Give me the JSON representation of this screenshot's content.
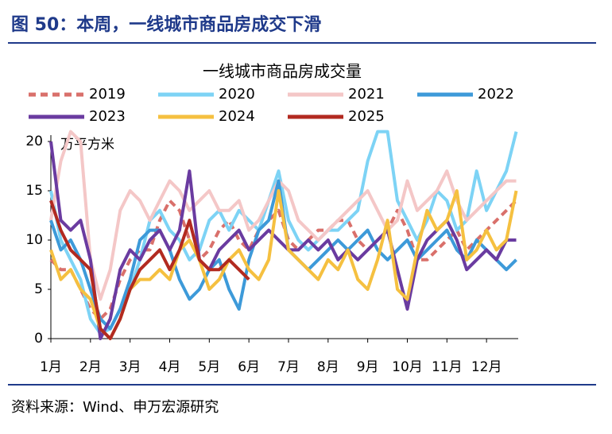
{
  "header": {
    "title": "图 50：本周，一线城市商品房成交下滑"
  },
  "chart_data": {
    "type": "line",
    "title": "一线城市商品房成交量",
    "y_label": "万平方米",
    "xlim": [
      1,
      12.8
    ],
    "ylim": [
      0,
      20
    ],
    "yticks": [
      0,
      5,
      10,
      15,
      20
    ],
    "xticks": [
      {
        "value": 1,
        "label": "1月"
      },
      {
        "value": 2,
        "label": "2月"
      },
      {
        "value": 3,
        "label": "3月"
      },
      {
        "value": 4,
        "label": "4月"
      },
      {
        "value": 5,
        "label": "5月"
      },
      {
        "value": 6,
        "label": "6月"
      },
      {
        "value": 7,
        "label": "7月"
      },
      {
        "value": 8,
        "label": "8月"
      },
      {
        "value": 9,
        "label": "9月"
      },
      {
        "value": 10,
        "label": "10月"
      },
      {
        "value": 11,
        "label": "11月"
      },
      {
        "value": 12,
        "label": "12月"
      }
    ],
    "x": [
      1,
      1.25,
      1.5,
      1.75,
      2,
      2.25,
      2.5,
      2.75,
      3,
      3.25,
      3.5,
      3.75,
      4,
      4.25,
      4.5,
      4.75,
      5,
      5.25,
      5.5,
      5.75,
      6,
      6.25,
      6.5,
      6.75,
      7,
      7.25,
      7.5,
      7.75,
      8,
      8.25,
      8.5,
      8.75,
      9,
      9.25,
      9.5,
      9.75,
      10,
      10.25,
      10.5,
      10.75,
      11,
      11.25,
      11.5,
      11.75,
      12,
      12.25,
      12.5,
      12.75
    ],
    "series": [
      {
        "name": "2019",
        "color": "#d9706b",
        "style": "dashed",
        "values": [
          8,
          7,
          7,
          5,
          3,
          2,
          3,
          6,
          8,
          9,
          9,
          12,
          14,
          13,
          10,
          8,
          9,
          11,
          12,
          10,
          9,
          11,
          12,
          13,
          10,
          9,
          10,
          11,
          11,
          12,
          12,
          10,
          9,
          10,
          11,
          13,
          11,
          8,
          8,
          9,
          10,
          11,
          9,
          10,
          11,
          12,
          13,
          14
        ]
      },
      {
        "name": "2020",
        "color": "#7dd3f5",
        "style": "solid",
        "values": [
          15,
          10,
          8,
          6,
          2,
          0.5,
          1,
          3,
          5,
          8,
          12,
          13,
          11,
          10,
          8,
          9,
          12,
          13,
          11,
          13,
          12,
          11,
          14,
          17,
          12,
          10,
          9,
          10,
          11,
          11,
          12,
          13,
          18,
          21,
          21,
          14,
          12,
          10,
          12,
          15,
          14,
          11,
          12,
          17,
          13,
          15,
          17,
          21
        ]
      },
      {
        "name": "2021",
        "color": "#f4c7c7",
        "style": "solid",
        "values": [
          12,
          18,
          21,
          20,
          8,
          4,
          7,
          13,
          15,
          14,
          12,
          14,
          16,
          15,
          13,
          14,
          15,
          13,
          13,
          14,
          11,
          12,
          14,
          16,
          15,
          12,
          11,
          10,
          11,
          12,
          13,
          14,
          15,
          13,
          11,
          12,
          16,
          13,
          14,
          15,
          17,
          14,
          12,
          13,
          14,
          15,
          16,
          16
        ]
      },
      {
        "name": "2022",
        "color": "#3d9ad9",
        "style": "solid",
        "values": [
          12,
          9,
          10,
          8,
          5,
          2,
          1,
          3,
          6,
          10,
          11,
          11,
          9,
          6,
          4,
          5,
          7,
          8,
          5,
          3,
          8,
          11,
          12,
          16,
          9,
          8,
          7,
          8,
          9,
          10,
          9,
          10,
          11,
          9,
          8,
          9,
          10,
          8,
          9,
          10,
          11,
          9,
          8,
          10,
          9,
          8,
          7,
          8
        ]
      },
      {
        "name": "2023",
        "color": "#6a3ba0",
        "style": "solid",
        "values": [
          20,
          12,
          11,
          12,
          8,
          0,
          2,
          7,
          9,
          8,
          10,
          11,
          9,
          11,
          17,
          8,
          7,
          9,
          10,
          11,
          9,
          10,
          11,
          10,
          9,
          9,
          10,
          9,
          10,
          8,
          9,
          8,
          9,
          10,
          11,
          7,
          3,
          8,
          10,
          11,
          12,
          10,
          7,
          8,
          9,
          8,
          10,
          10
        ]
      },
      {
        "name": "2024",
        "color": "#f5c040",
        "style": "solid",
        "values": [
          9,
          6,
          7,
          5,
          4,
          1,
          0,
          2,
          5,
          6,
          6,
          7,
          6,
          9,
          10,
          8,
          5,
          6,
          8,
          9,
          7,
          6,
          8,
          15,
          9,
          8,
          7,
          6,
          8,
          7,
          9,
          6,
          5,
          8,
          12,
          5,
          4,
          9,
          13,
          11,
          12,
          15,
          8,
          9,
          11,
          9,
          10,
          15
        ]
      },
      {
        "name": "2025",
        "color": "#b22a20",
        "style": "solid",
        "values": [
          14,
          11,
          9,
          8,
          7,
          1,
          0,
          2,
          5,
          7,
          8,
          9,
          7,
          9,
          12,
          8,
          7,
          7,
          8,
          7,
          6,
          null,
          null,
          null,
          null,
          null,
          null,
          null,
          null,
          null,
          null,
          null,
          null,
          null,
          null,
          null,
          null,
          null,
          null,
          null,
          null,
          null,
          null,
          null,
          null,
          null,
          null,
          null
        ]
      }
    ]
  },
  "footer": {
    "source": "资料来源：Wind、申万宏源研究"
  }
}
